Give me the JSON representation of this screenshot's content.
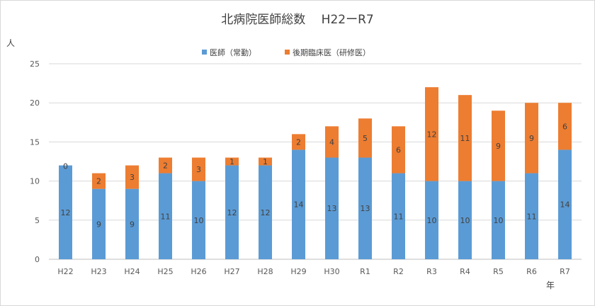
{
  "chart_data": {
    "type": "bar",
    "stacked": true,
    "title": "北病院医師総数　 H22ーR7",
    "ylabel": "人",
    "xlabel": "年",
    "ylim": [
      0,
      25
    ],
    "yticks": [
      0,
      5,
      10,
      15,
      20,
      25
    ],
    "grid": true,
    "legend_position": "top",
    "categories": [
      "H22",
      "H23",
      "H24",
      "H25",
      "H26",
      "H27",
      "H28",
      "H29",
      "H30",
      "R1",
      "R2",
      "R3",
      "R4",
      "R5",
      "R6",
      "R7"
    ],
    "series": [
      {
        "name": "医師（常勤）",
        "color": "#5b9bd5",
        "values": [
          12,
          9,
          9,
          11,
          10,
          12,
          12,
          14,
          13,
          13,
          11,
          10,
          10,
          10,
          11,
          14
        ]
      },
      {
        "name": "後期臨床医（研修医）",
        "color": "#ed7d31",
        "values": [
          0,
          2,
          3,
          2,
          3,
          1,
          1,
          2,
          4,
          5,
          6,
          12,
          11,
          9,
          9,
          6
        ]
      }
    ]
  }
}
